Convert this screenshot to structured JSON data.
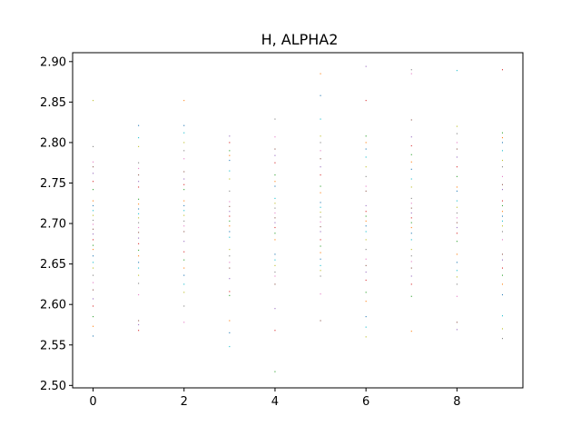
{
  "chart_data": {
    "type": "scatter",
    "title": "H, ALPHA2",
    "xlabel": "",
    "ylabel": "",
    "xlim": [
      -0.45,
      9.45
    ],
    "ylim": [
      2.497,
      2.911
    ],
    "xticks": [
      0,
      2,
      4,
      6,
      8
    ],
    "xtick_labels": [
      "0",
      "2",
      "4",
      "6",
      "8"
    ],
    "yticks": [
      2.5,
      2.55,
      2.6,
      2.65,
      2.7,
      2.75,
      2.8,
      2.85,
      2.9
    ],
    "ytick_labels": [
      "2.50",
      "2.55",
      "2.60",
      "2.65",
      "2.70",
      "2.75",
      "2.80",
      "2.85",
      "2.90"
    ],
    "grid": false,
    "legend": "none",
    "colors": [
      "#1f77b4",
      "#ff7f0e",
      "#2ca02c",
      "#d62728",
      "#9467bd",
      "#8c564b",
      "#e377c2",
      "#7f7f7f",
      "#bcbd22",
      "#17becf"
    ],
    "columns": [
      {
        "x": 0,
        "y": [
          2.561,
          2.573,
          2.585,
          2.598,
          2.607,
          2.618,
          2.627,
          2.636,
          2.645,
          2.652,
          2.66,
          2.668,
          2.673,
          2.68,
          2.687,
          2.693,
          2.699,
          2.704,
          2.71,
          2.716,
          2.722,
          2.728,
          2.742,
          2.752,
          2.762,
          2.77,
          2.776,
          2.795,
          2.852
        ]
      },
      {
        "x": 1,
        "y": [
          2.568,
          2.575,
          2.58,
          2.612,
          2.626,
          2.636,
          2.645,
          2.652,
          2.66,
          2.667,
          2.675,
          2.682,
          2.689,
          2.695,
          2.701,
          2.707,
          2.712,
          2.718,
          2.724,
          2.73,
          2.745,
          2.752,
          2.76,
          2.768,
          2.775,
          2.795,
          2.806,
          2.821
        ]
      },
      {
        "x": 2,
        "y": [
          2.578,
          2.598,
          2.615,
          2.625,
          2.636,
          2.645,
          2.655,
          2.665,
          2.678,
          2.69,
          2.697,
          2.703,
          2.71,
          2.716,
          2.722,
          2.728,
          2.742,
          2.748,
          2.755,
          2.764,
          2.78,
          2.79,
          2.8,
          2.812,
          2.821,
          2.852
        ]
      },
      {
        "x": 3,
        "y": [
          2.548,
          2.565,
          2.58,
          2.611,
          2.616,
          2.632,
          2.645,
          2.652,
          2.66,
          2.668,
          2.683,
          2.69,
          2.697,
          2.703,
          2.709,
          2.715,
          2.721,
          2.727,
          2.74,
          2.755,
          2.765,
          2.778,
          2.784,
          2.79,
          2.8,
          2.808
        ]
      },
      {
        "x": 4,
        "y": [
          2.517,
          2.568,
          2.595,
          2.625,
          2.635,
          2.64,
          2.648,
          2.655,
          2.662,
          2.68,
          2.688,
          2.695,
          2.701,
          2.707,
          2.713,
          2.719,
          2.725,
          2.731,
          2.746,
          2.752,
          2.76,
          2.775,
          2.784,
          2.792,
          2.807,
          2.829
        ]
      },
      {
        "x": 5,
        "y": [
          2.58,
          2.613,
          2.635,
          2.642,
          2.648,
          2.656,
          2.664,
          2.672,
          2.68,
          2.69,
          2.696,
          2.702,
          2.708,
          2.714,
          2.72,
          2.726,
          2.738,
          2.746,
          2.76,
          2.77,
          2.78,
          2.79,
          2.8,
          2.808,
          2.829,
          2.858,
          2.885
        ]
      },
      {
        "x": 6,
        "y": [
          2.56,
          2.572,
          2.585,
          2.604,
          2.615,
          2.63,
          2.64,
          2.648,
          2.656,
          2.668,
          2.68,
          2.69,
          2.697,
          2.703,
          2.709,
          2.715,
          2.722,
          2.74,
          2.746,
          2.758,
          2.77,
          2.782,
          2.792,
          2.8,
          2.808,
          2.852,
          2.894
        ]
      },
      {
        "x": 7,
        "y": [
          2.567,
          2.61,
          2.625,
          2.635,
          2.645,
          2.653,
          2.66,
          2.668,
          2.68,
          2.688,
          2.695,
          2.701,
          2.707,
          2.713,
          2.719,
          2.725,
          2.731,
          2.745,
          2.755,
          2.767,
          2.776,
          2.785,
          2.796,
          2.807,
          2.828,
          2.885,
          2.89
        ]
      },
      {
        "x": 8,
        "y": [
          2.569,
          2.578,
          2.61,
          2.625,
          2.634,
          2.642,
          2.652,
          2.662,
          2.678,
          2.688,
          2.695,
          2.701,
          2.707,
          2.713,
          2.72,
          2.728,
          2.74,
          2.745,
          2.758,
          2.77,
          2.782,
          2.792,
          2.8,
          2.811,
          2.82,
          2.889
        ]
      },
      {
        "x": 9,
        "y": [
          2.558,
          2.57,
          2.586,
          2.612,
          2.625,
          2.636,
          2.645,
          2.655,
          2.662,
          2.68,
          2.69,
          2.697,
          2.703,
          2.709,
          2.715,
          2.722,
          2.728,
          2.742,
          2.748,
          2.758,
          2.77,
          2.778,
          2.79,
          2.8,
          2.806,
          2.812,
          2.89
        ]
      }
    ]
  }
}
